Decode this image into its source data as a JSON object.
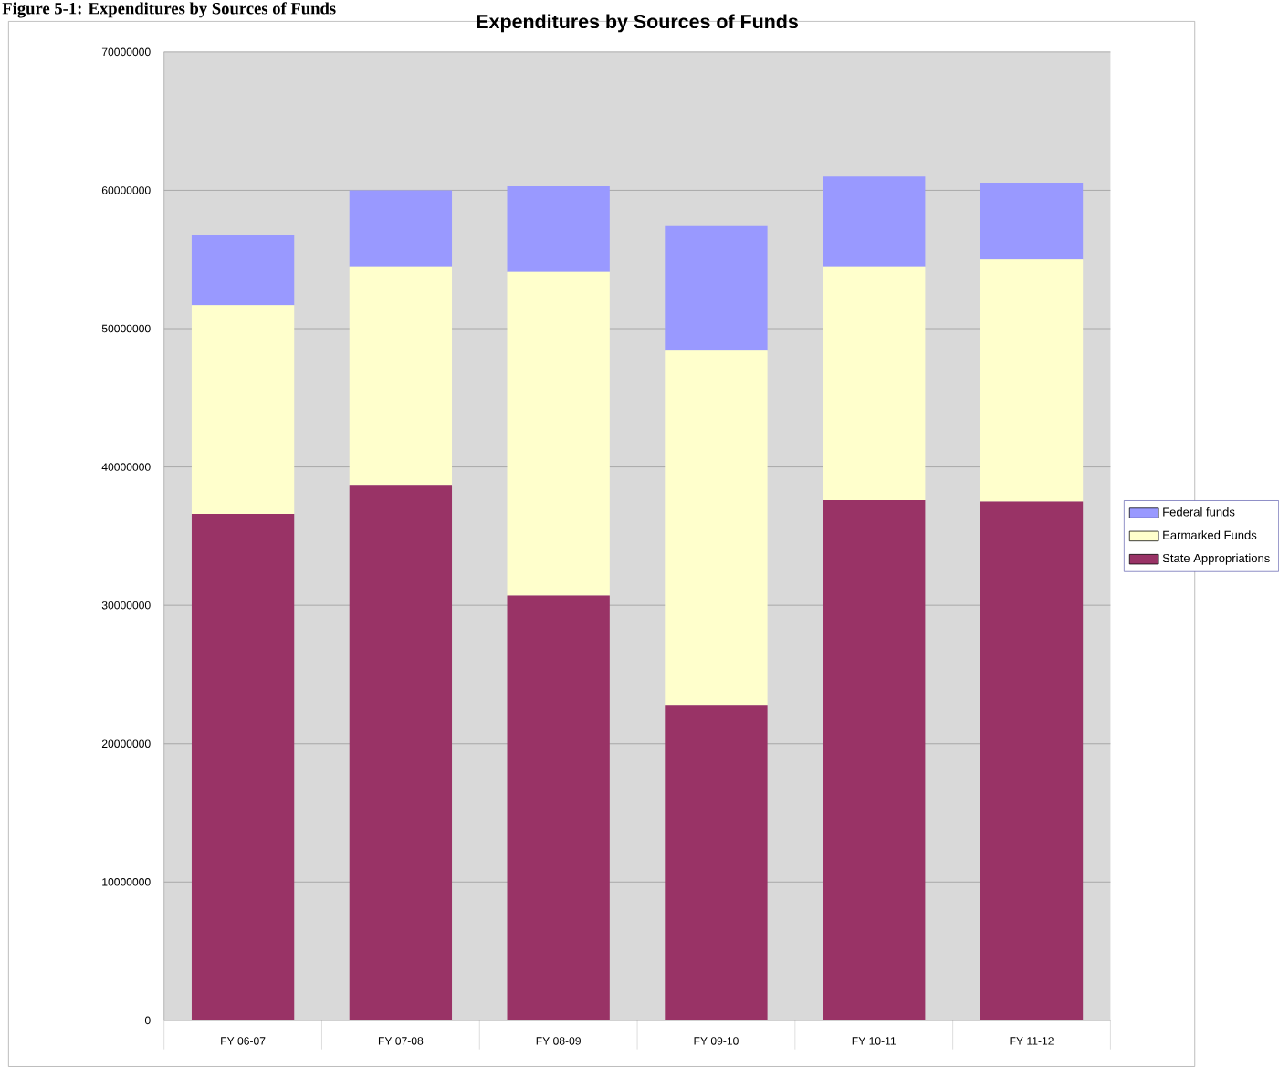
{
  "chart_data": {
    "type": "bar",
    "title": "Expenditures by Sources of Funds",
    "annotations": [
      "Figure 5-1:  Expenditures by Sources of Funds"
    ],
    "categories": [
      "FY 06-07",
      "FY 07-08",
      "FY 08-09",
      "FY 09-10",
      "FY 10-11",
      "FY 11-12"
    ],
    "stacked": true,
    "series": [
      {
        "name": "State Appropriations",
        "color": "#993366",
        "values": [
          36600000,
          38700000,
          30700000,
          22800000,
          37600000,
          37500000
        ]
      },
      {
        "name": "Earmarked Funds",
        "color": "#ffffcc",
        "values": [
          15100000,
          15800000,
          23400000,
          25600000,
          16900000,
          17500000
        ]
      },
      {
        "name": "Federal funds",
        "color": "#9999ff",
        "values": [
          5050000,
          5500000,
          6200000,
          9000000,
          6500000,
          5500000
        ]
      }
    ],
    "ylim": [
      0,
      70000000
    ],
    "yticks": [
      0,
      10000000,
      20000000,
      30000000,
      40000000,
      50000000,
      60000000,
      70000000
    ],
    "grid": "y",
    "legend": "right"
  }
}
